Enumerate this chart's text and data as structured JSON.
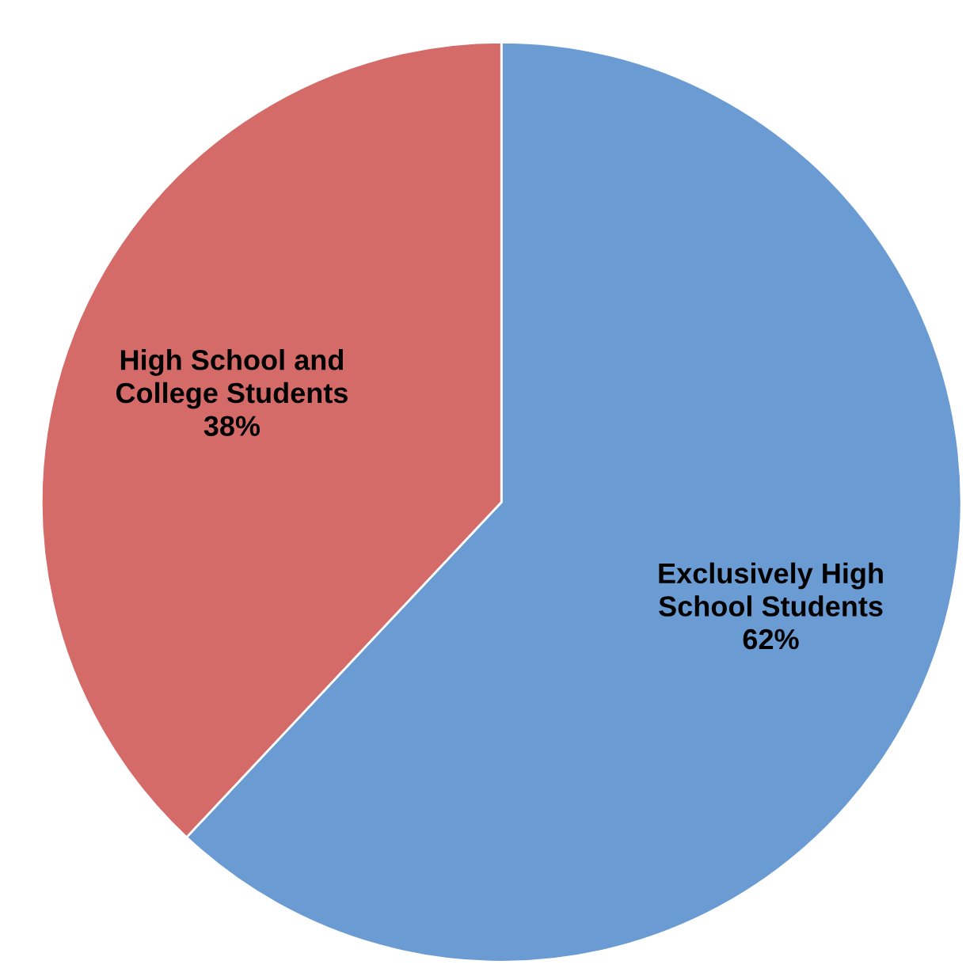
{
  "chart_data": {
    "type": "pie",
    "categories": [
      "Exclusively High\nSchool Students",
      "High School and\nCollege Students"
    ],
    "values": [
      62,
      38
    ],
    "colors": [
      "#6a9bd3",
      "#d46b68"
    ],
    "value_labels": [
      "62%",
      "38%"
    ]
  }
}
